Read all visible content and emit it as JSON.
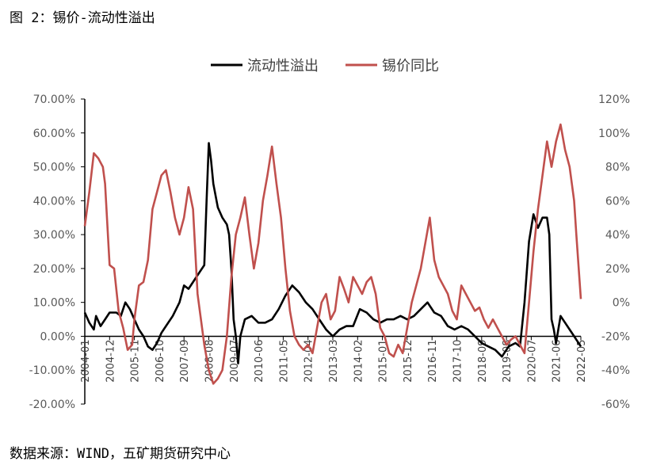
{
  "header": {
    "title": "图 2：锡价-流动性溢出"
  },
  "footer": {
    "source": "数据来源：WIND，五矿期货研究中心"
  },
  "chart_data": {
    "type": "line",
    "title": "",
    "xlabel": "",
    "ylabel": "",
    "legend_position": "top-center",
    "grid": false,
    "y_left": {
      "min": -20,
      "max": 70,
      "step": 10,
      "tick_labels": [
        "-20.00%",
        "-10.00%",
        "0.00%",
        "10.00%",
        "20.00%",
        "30.00%",
        "40.00%",
        "50.00%",
        "60.00%",
        "70.00%"
      ]
    },
    "y_right": {
      "min": -60,
      "max": 120,
      "step": 20,
      "tick_labels": [
        "-60%",
        "-40%",
        "-20%",
        "0%",
        "20%",
        "40%",
        "60%",
        "80%",
        "100%",
        "120%"
      ]
    },
    "x_tick_labels": [
      "2004-01",
      "2004-12",
      "2005-11",
      "2006-10",
      "2007-09",
      "2008-08",
      "2009-07",
      "2010-06",
      "2011-05",
      "2012-04",
      "2013-03",
      "2014-02",
      "2015-01",
      "2015-12",
      "2016-11",
      "2017-10",
      "2018-09",
      "2019-08",
      "2020-07",
      "2021-06",
      "2022-05"
    ],
    "x_start": "2004-01",
    "x_end": "2022-05",
    "series": [
      {
        "name": "流动性溢出",
        "axis": "left",
        "color": "#000000",
        "points": [
          [
            "2004-01",
            7
          ],
          [
            "2004-03",
            4
          ],
          [
            "2004-05",
            2
          ],
          [
            "2004-06",
            6
          ],
          [
            "2004-08",
            3
          ],
          [
            "2004-10",
            5
          ],
          [
            "2004-12",
            7
          ],
          [
            "2005-03",
            7
          ],
          [
            "2005-05",
            6
          ],
          [
            "2005-07",
            10
          ],
          [
            "2005-09",
            8
          ],
          [
            "2005-11",
            5
          ],
          [
            "2006-01",
            2
          ],
          [
            "2006-03",
            0
          ],
          [
            "2006-05",
            -3
          ],
          [
            "2006-07",
            -4
          ],
          [
            "2006-09",
            -2
          ],
          [
            "2006-11",
            1
          ],
          [
            "2007-01",
            3
          ],
          [
            "2007-04",
            6
          ],
          [
            "2007-07",
            10
          ],
          [
            "2007-09",
            15
          ],
          [
            "2007-11",
            14
          ],
          [
            "2008-01",
            16
          ],
          [
            "2008-03",
            18
          ],
          [
            "2008-06",
            21
          ],
          [
            "2008-07",
            40
          ],
          [
            "2008-08",
            57
          ],
          [
            "2008-09",
            52
          ],
          [
            "2008-10",
            45
          ],
          [
            "2008-12",
            38
          ],
          [
            "2009-02",
            35
          ],
          [
            "2009-04",
            33
          ],
          [
            "2009-05",
            30
          ],
          [
            "2009-06",
            20
          ],
          [
            "2009-07",
            5
          ],
          [
            "2009-08",
            0
          ],
          [
            "2009-09",
            -8
          ],
          [
            "2009-10",
            0
          ],
          [
            "2009-12",
            5
          ],
          [
            "2010-03",
            6
          ],
          [
            "2010-06",
            4
          ],
          [
            "2010-09",
            4
          ],
          [
            "2010-12",
            5
          ],
          [
            "2011-03",
            8
          ],
          [
            "2011-06",
            12
          ],
          [
            "2011-09",
            15
          ],
          [
            "2011-12",
            13
          ],
          [
            "2012-03",
            10
          ],
          [
            "2012-06",
            8
          ],
          [
            "2012-09",
            5
          ],
          [
            "2012-12",
            2
          ],
          [
            "2013-03",
            0
          ],
          [
            "2013-06",
            2
          ],
          [
            "2013-09",
            3
          ],
          [
            "2013-12",
            3
          ],
          [
            "2014-03",
            8
          ],
          [
            "2014-06",
            7
          ],
          [
            "2014-09",
            5
          ],
          [
            "2014-12",
            4
          ],
          [
            "2015-03",
            5
          ],
          [
            "2015-06",
            5
          ],
          [
            "2015-09",
            6
          ],
          [
            "2015-12",
            5
          ],
          [
            "2016-03",
            6
          ],
          [
            "2016-06",
            8
          ],
          [
            "2016-09",
            10
          ],
          [
            "2016-12",
            7
          ],
          [
            "2017-03",
            6
          ],
          [
            "2017-06",
            3
          ],
          [
            "2017-09",
            2
          ],
          [
            "2017-12",
            3
          ],
          [
            "2018-03",
            2
          ],
          [
            "2018-06",
            0
          ],
          [
            "2018-09",
            -2
          ],
          [
            "2018-12",
            -3
          ],
          [
            "2019-03",
            -4
          ],
          [
            "2019-06",
            -6
          ],
          [
            "2019-09",
            -3
          ],
          [
            "2019-12",
            -2
          ],
          [
            "2020-02",
            -3
          ],
          [
            "2020-04",
            10
          ],
          [
            "2020-06",
            28
          ],
          [
            "2020-08",
            36
          ],
          [
            "2020-10",
            32
          ],
          [
            "2020-12",
            35
          ],
          [
            "2021-02",
            35
          ],
          [
            "2021-03",
            30
          ],
          [
            "2021-04",
            5
          ],
          [
            "2021-05",
            2
          ],
          [
            "2021-06",
            -2
          ],
          [
            "2021-08",
            6
          ],
          [
            "2021-10",
            4
          ],
          [
            "2021-12",
            2
          ],
          [
            "2022-02",
            0
          ],
          [
            "2022-03",
            -1
          ],
          [
            "2022-05",
            -3
          ]
        ]
      },
      {
        "name": "锡价同比",
        "axis": "right",
        "color": "#c0504d",
        "points": [
          [
            "2004-01",
            45
          ],
          [
            "2004-03",
            65
          ],
          [
            "2004-05",
            88
          ],
          [
            "2004-07",
            85
          ],
          [
            "2004-09",
            80
          ],
          [
            "2004-10",
            70
          ],
          [
            "2004-12",
            22
          ],
          [
            "2005-02",
            20
          ],
          [
            "2005-04",
            -5
          ],
          [
            "2005-06",
            -15
          ],
          [
            "2005-08",
            -28
          ],
          [
            "2005-10",
            -25
          ],
          [
            "2005-11",
            -10
          ],
          [
            "2006-01",
            10
          ],
          [
            "2006-03",
            12
          ],
          [
            "2006-05",
            25
          ],
          [
            "2006-07",
            55
          ],
          [
            "2006-09",
            65
          ],
          [
            "2006-11",
            75
          ],
          [
            "2007-01",
            78
          ],
          [
            "2007-03",
            65
          ],
          [
            "2007-05",
            50
          ],
          [
            "2007-07",
            40
          ],
          [
            "2007-09",
            50
          ],
          [
            "2007-11",
            68
          ],
          [
            "2008-01",
            55
          ],
          [
            "2008-03",
            5
          ],
          [
            "2008-06",
            -25
          ],
          [
            "2008-08",
            -40
          ],
          [
            "2008-10",
            -48
          ],
          [
            "2008-12",
            -45
          ],
          [
            "2009-02",
            -40
          ],
          [
            "2009-04",
            -20
          ],
          [
            "2009-06",
            15
          ],
          [
            "2009-08",
            40
          ],
          [
            "2009-10",
            50
          ],
          [
            "2009-12",
            62
          ],
          [
            "2010-02",
            40
          ],
          [
            "2010-04",
            20
          ],
          [
            "2010-06",
            35
          ],
          [
            "2010-08",
            60
          ],
          [
            "2010-10",
            75
          ],
          [
            "2010-12",
            92
          ],
          [
            "2011-02",
            70
          ],
          [
            "2011-04",
            50
          ],
          [
            "2011-06",
            20
          ],
          [
            "2011-08",
            -5
          ],
          [
            "2011-10",
            -20
          ],
          [
            "2011-12",
            -25
          ],
          [
            "2012-02",
            -28
          ],
          [
            "2012-04",
            -25
          ],
          [
            "2012-06",
            -30
          ],
          [
            "2012-08",
            -15
          ],
          [
            "2012-10",
            0
          ],
          [
            "2012-12",
            5
          ],
          [
            "2013-02",
            -10
          ],
          [
            "2013-04",
            -5
          ],
          [
            "2013-06",
            15
          ],
          [
            "2013-08",
            8
          ],
          [
            "2013-10",
            0
          ],
          [
            "2013-12",
            15
          ],
          [
            "2014-02",
            10
          ],
          [
            "2014-04",
            5
          ],
          [
            "2014-06",
            12
          ],
          [
            "2014-08",
            15
          ],
          [
            "2014-10",
            5
          ],
          [
            "2014-12",
            -15
          ],
          [
            "2015-02",
            -20
          ],
          [
            "2015-04",
            -30
          ],
          [
            "2015-06",
            -32
          ],
          [
            "2015-08",
            -25
          ],
          [
            "2015-10",
            -30
          ],
          [
            "2015-12",
            -15
          ],
          [
            "2016-02",
            0
          ],
          [
            "2016-04",
            10
          ],
          [
            "2016-06",
            20
          ],
          [
            "2016-08",
            35
          ],
          [
            "2016-10",
            50
          ],
          [
            "2016-12",
            25
          ],
          [
            "2017-02",
            15
          ],
          [
            "2017-04",
            10
          ],
          [
            "2017-06",
            5
          ],
          [
            "2017-08",
            -5
          ],
          [
            "2017-10",
            -10
          ],
          [
            "2017-12",
            10
          ],
          [
            "2018-02",
            5
          ],
          [
            "2018-04",
            0
          ],
          [
            "2018-06",
            -5
          ],
          [
            "2018-08",
            -3
          ],
          [
            "2018-10",
            -10
          ],
          [
            "2018-12",
            -15
          ],
          [
            "2019-02",
            -10
          ],
          [
            "2019-04",
            -15
          ],
          [
            "2019-06",
            -20
          ],
          [
            "2019-08",
            -25
          ],
          [
            "2019-10",
            -22
          ],
          [
            "2019-12",
            -20
          ],
          [
            "2020-02",
            -25
          ],
          [
            "2020-04",
            -30
          ],
          [
            "2020-06",
            0
          ],
          [
            "2020-08",
            30
          ],
          [
            "2020-10",
            55
          ],
          [
            "2020-12",
            75
          ],
          [
            "2021-02",
            95
          ],
          [
            "2021-04",
            80
          ],
          [
            "2021-06",
            95
          ],
          [
            "2021-08",
            105
          ],
          [
            "2021-10",
            90
          ],
          [
            "2021-12",
            80
          ],
          [
            "2022-02",
            60
          ],
          [
            "2022-03",
            40
          ],
          [
            "2022-05",
            2
          ]
        ]
      }
    ]
  }
}
